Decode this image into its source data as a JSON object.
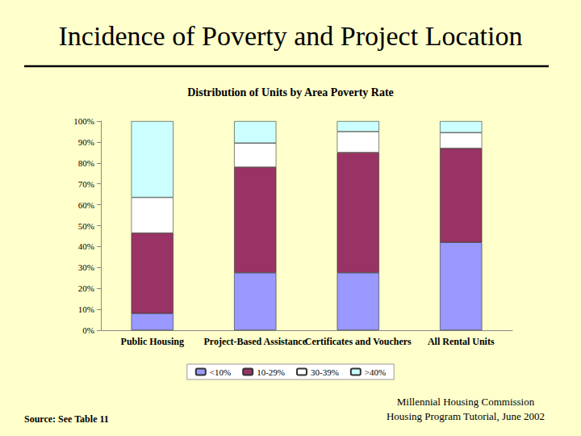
{
  "chart_data": {
    "type": "bar",
    "title": "Incidence of Poverty and Project Location",
    "subtitle": "Distribution of Units by Area Poverty Rate",
    "annotations": [
      "Source: See Table 11",
      "Millennial Housing Commission",
      "Housing Program Tutorial, June 2002"
    ],
    "categories": [
      "Public Housing",
      "Project-Based Assistance",
      "Certificates and Vouchers",
      "All Rental Units"
    ],
    "series": [
      {
        "name": "<10%",
        "color": "#9999ff",
        "values": [
          8,
          27.5,
          27.5,
          42
        ]
      },
      {
        "name": "10-29%",
        "color": "#993366",
        "values": [
          38.5,
          50.5,
          57.5,
          45
        ]
      },
      {
        "name": "30-39%",
        "color": "#ffffff",
        "values": [
          17,
          11.5,
          10,
          7.5
        ]
      },
      {
        "name": ">40%",
        "color": "#ccffff",
        "values": [
          36.5,
          10.5,
          5,
          5.5
        ]
      }
    ],
    "stacked": true,
    "legend": "bottom",
    "grid": false,
    "ylim": [
      0,
      100
    ],
    "yticks": [
      {
        "value": 0,
        "label": "0%"
      },
      {
        "value": 10,
        "label": "10%"
      },
      {
        "value": 20,
        "label": "20%"
      },
      {
        "value": 30,
        "label": "30%"
      },
      {
        "value": 40,
        "label": "40%"
      },
      {
        "value": 50,
        "label": "50%"
      },
      {
        "value": 60,
        "label": "60%"
      },
      {
        "value": 70,
        "label": "70%"
      },
      {
        "value": 80,
        "label": "80%"
      },
      {
        "value": 90,
        "label": "90%"
      },
      {
        "value": 100,
        "label": "100%"
      }
    ]
  }
}
